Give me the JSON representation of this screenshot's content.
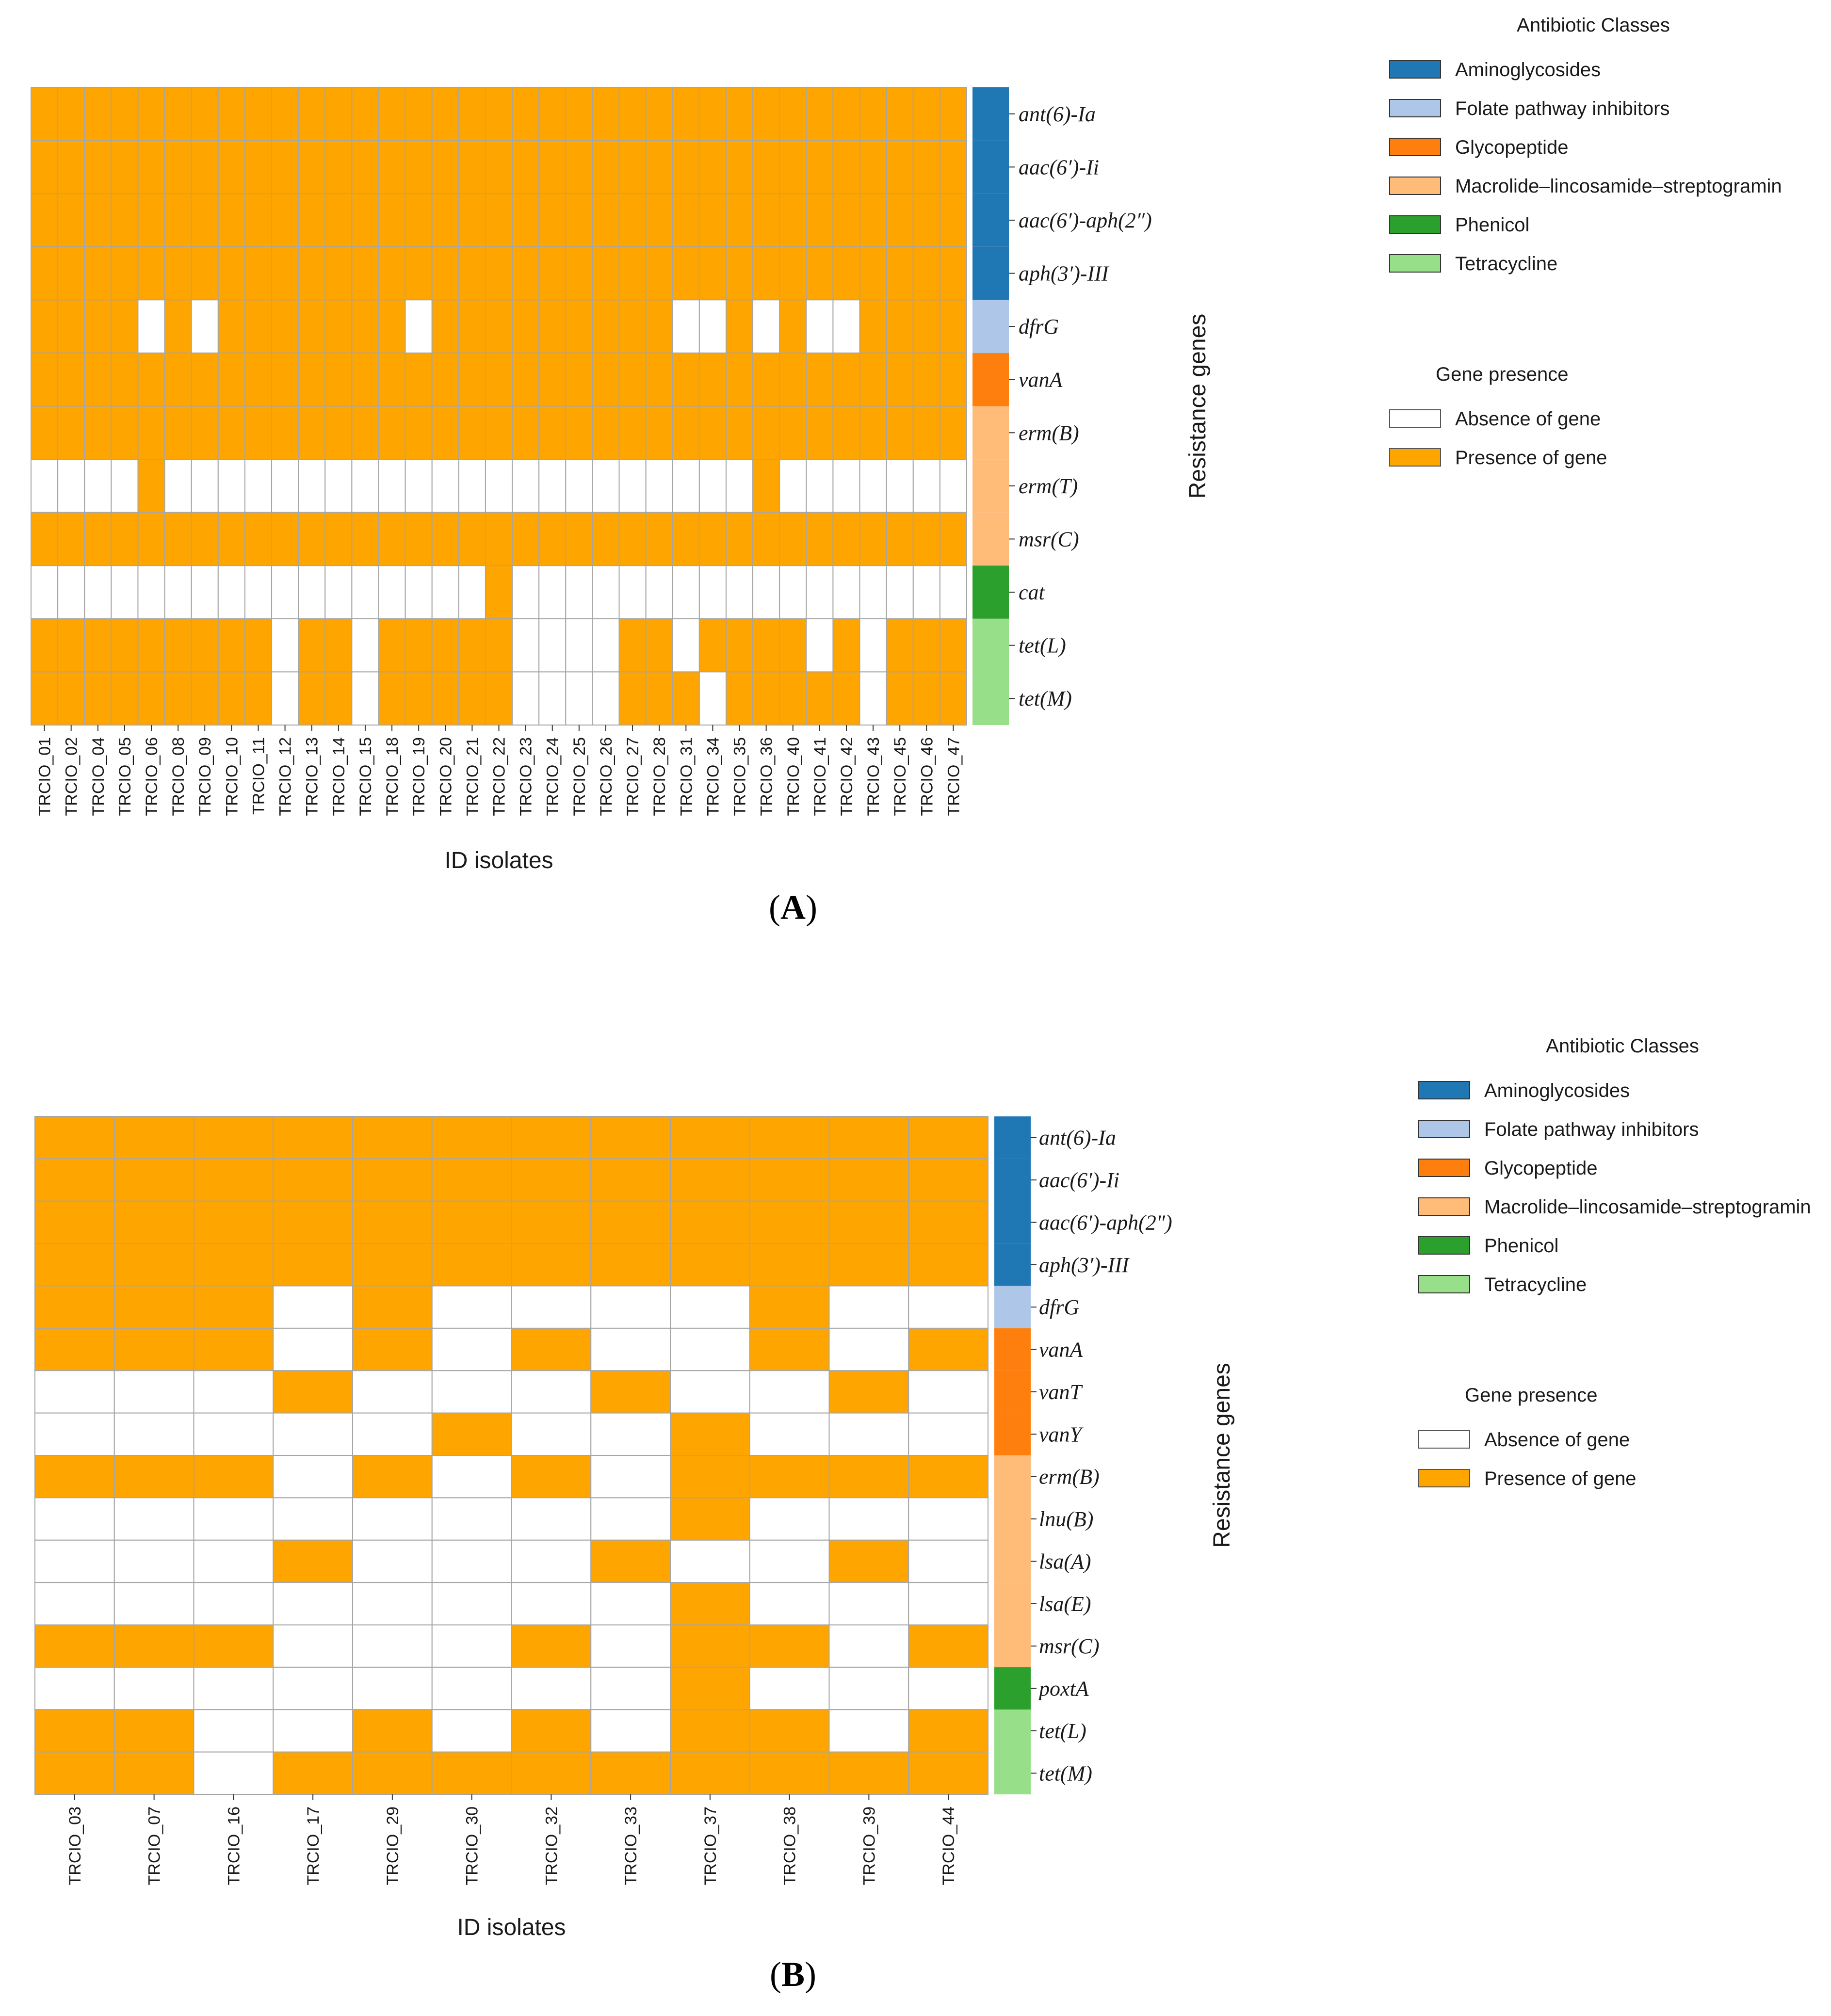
{
  "figure": {
    "colors": {
      "presence": "#ffa500",
      "absence": "#ffffff",
      "grid": "#a6a6a6",
      "Aminoglycosides": "#1f77b4",
      "Folate pathway inhibitors": "#aec7e8",
      "Glycopeptide": "#ff7f0e",
      "Macrolide–lincosamide–streptogramin": "#ffbb78",
      "Phenicol": "#2ca02c",
      "Tetracycline": "#98df8a"
    }
  },
  "chart_data": [
    {
      "panel_label": "(A)",
      "type": "heatmap",
      "xlabel": "ID isolates",
      "ylabel": "Resistance genes",
      "columns": [
        "TRCIO_01",
        "TRCIO_02",
        "TRCIO_04",
        "TRCIO_05",
        "TRCIO_06",
        "TRCIO_08",
        "TRCIO_09",
        "TRCIO_10",
        "TRCIO_11",
        "TRCIO_12",
        "TRCIO_13",
        "TRCIO_14",
        "TRCIO_15",
        "TRCIO_18",
        "TRCIO_19",
        "TRCIO_20",
        "TRCIO_21",
        "TRCIO_22",
        "TRCIO_23",
        "TRCIO_24",
        "TRCIO_25",
        "TRCIO_26",
        "TRCIO_27",
        "TRCIO_28",
        "TRCIO_31",
        "TRCIO_34",
        "TRCIO_35",
        "TRCIO_36",
        "TRCIO_40",
        "TRCIO_41",
        "TRCIO_42",
        "TRCIO_43",
        "TRCIO_45",
        "TRCIO_46",
        "TRCIO_47"
      ],
      "rows": [
        {
          "gene": "ant(6)-Ia",
          "class": "Aminoglycosides",
          "values": [
            1,
            1,
            1,
            1,
            1,
            1,
            1,
            1,
            1,
            1,
            1,
            1,
            1,
            1,
            1,
            1,
            1,
            1,
            1,
            1,
            1,
            1,
            1,
            1,
            1,
            1,
            1,
            1,
            1,
            1,
            1,
            1,
            1,
            1,
            1
          ]
        },
        {
          "gene": "aac(6')-Ii",
          "class": "Aminoglycosides",
          "values": [
            1,
            1,
            1,
            1,
            1,
            1,
            1,
            1,
            1,
            1,
            1,
            1,
            1,
            1,
            1,
            1,
            1,
            1,
            1,
            1,
            1,
            1,
            1,
            1,
            1,
            1,
            1,
            1,
            1,
            1,
            1,
            1,
            1,
            1,
            1
          ]
        },
        {
          "gene": "aac(6')-aph(2'')",
          "class": "Aminoglycosides",
          "values": [
            1,
            1,
            1,
            1,
            1,
            1,
            1,
            1,
            1,
            1,
            1,
            1,
            1,
            1,
            1,
            1,
            1,
            1,
            1,
            1,
            1,
            1,
            1,
            1,
            1,
            1,
            1,
            1,
            1,
            1,
            1,
            1,
            1,
            1,
            1
          ]
        },
        {
          "gene": "aph(3')-III",
          "class": "Aminoglycosides",
          "values": [
            1,
            1,
            1,
            1,
            1,
            1,
            1,
            1,
            1,
            1,
            1,
            1,
            1,
            1,
            1,
            1,
            1,
            1,
            1,
            1,
            1,
            1,
            1,
            1,
            1,
            1,
            1,
            1,
            1,
            1,
            1,
            1,
            1,
            1,
            1
          ]
        },
        {
          "gene": "dfrG",
          "class": "Folate pathway inhibitors",
          "values": [
            1,
            1,
            1,
            1,
            0,
            1,
            0,
            1,
            1,
            1,
            1,
            1,
            1,
            1,
            0,
            1,
            1,
            1,
            1,
            1,
            1,
            1,
            1,
            1,
            0,
            0,
            1,
            0,
            1,
            0,
            0,
            1,
            1,
            1,
            1
          ]
        },
        {
          "gene": "vanA",
          "class": "Glycopeptide",
          "values": [
            1,
            1,
            1,
            1,
            1,
            1,
            1,
            1,
            1,
            1,
            1,
            1,
            1,
            1,
            1,
            1,
            1,
            1,
            1,
            1,
            1,
            1,
            1,
            1,
            1,
            1,
            1,
            1,
            1,
            1,
            1,
            1,
            1,
            1,
            1
          ]
        },
        {
          "gene": "erm(B)",
          "class": "Macrolide–lincosamide–streptogramin",
          "values": [
            1,
            1,
            1,
            1,
            1,
            1,
            1,
            1,
            1,
            1,
            1,
            1,
            1,
            1,
            1,
            1,
            1,
            1,
            1,
            1,
            1,
            1,
            1,
            1,
            1,
            1,
            1,
            1,
            1,
            1,
            1,
            1,
            1,
            1,
            1
          ]
        },
        {
          "gene": "erm(T)",
          "class": "Macrolide–lincosamide–streptogramin",
          "values": [
            0,
            0,
            0,
            0,
            1,
            0,
            0,
            0,
            0,
            0,
            0,
            0,
            0,
            0,
            0,
            0,
            0,
            0,
            0,
            0,
            0,
            0,
            0,
            0,
            0,
            0,
            0,
            1,
            0,
            0,
            0,
            0,
            0,
            0,
            0
          ]
        },
        {
          "gene": "msr(C)",
          "class": "Macrolide–lincosamide–streptogramin",
          "values": [
            1,
            1,
            1,
            1,
            1,
            1,
            1,
            1,
            1,
            1,
            1,
            1,
            1,
            1,
            1,
            1,
            1,
            1,
            1,
            1,
            1,
            1,
            1,
            1,
            1,
            1,
            1,
            1,
            1,
            1,
            1,
            1,
            1,
            1,
            1
          ]
        },
        {
          "gene": "cat",
          "class": "Phenicol",
          "values": [
            0,
            0,
            0,
            0,
            0,
            0,
            0,
            0,
            0,
            0,
            0,
            0,
            0,
            0,
            0,
            0,
            0,
            1,
            0,
            0,
            0,
            0,
            0,
            0,
            0,
            0,
            0,
            0,
            0,
            0,
            0,
            0,
            0,
            0,
            0
          ]
        },
        {
          "gene": "tet(L)",
          "class": "Tetracycline",
          "values": [
            1,
            1,
            1,
            1,
            1,
            1,
            1,
            1,
            1,
            0,
            1,
            1,
            0,
            1,
            1,
            1,
            1,
            1,
            0,
            0,
            0,
            0,
            1,
            1,
            0,
            1,
            1,
            1,
            1,
            0,
            1,
            0,
            1,
            1,
            1
          ]
        },
        {
          "gene": "tet(M)",
          "class": "Tetracycline",
          "values": [
            1,
            1,
            1,
            1,
            1,
            1,
            1,
            1,
            1,
            0,
            1,
            1,
            0,
            1,
            1,
            1,
            1,
            1,
            0,
            0,
            0,
            0,
            1,
            1,
            1,
            0,
            1,
            1,
            1,
            1,
            1,
            0,
            1,
            1,
            1
          ]
        }
      ],
      "legend_classes_title": "Antibiotic Classes",
      "legend_classes": [
        "Aminoglycosides",
        "Folate pathway inhibitors",
        "Glycopeptide",
        "Macrolide–lincosamide–streptogramin",
        "Phenicol",
        "Tetracycline"
      ],
      "legend_presence_title": "Gene presence",
      "legend_presence": [
        "Absence of gene",
        "Presence of gene"
      ]
    },
    {
      "panel_label": "(B)",
      "type": "heatmap",
      "xlabel": "ID isolates",
      "ylabel": "Resistance genes",
      "columns": [
        "TRCIO_03",
        "TRCIO_07",
        "TRCIO_16",
        "TRCIO_17",
        "TRCIO_29",
        "TRCIO_30",
        "TRCIO_32",
        "TRCIO_33",
        "TRCIO_37",
        "TRCIO_38",
        "TRCIO_39",
        "TRCIO_44"
      ],
      "rows": [
        {
          "gene": "ant(6)-Ia",
          "class": "Aminoglycosides",
          "values": [
            1,
            1,
            1,
            1,
            1,
            1,
            1,
            1,
            1,
            1,
            1,
            1
          ]
        },
        {
          "gene": "aac(6')-Ii",
          "class": "Aminoglycosides",
          "values": [
            1,
            1,
            1,
            1,
            1,
            1,
            1,
            1,
            1,
            1,
            1,
            1
          ]
        },
        {
          "gene": "aac(6')-aph(2'')",
          "class": "Aminoglycosides",
          "values": [
            1,
            1,
            1,
            1,
            1,
            1,
            1,
            1,
            1,
            1,
            1,
            1
          ]
        },
        {
          "gene": "aph(3')-III",
          "class": "Aminoglycosides",
          "values": [
            1,
            1,
            1,
            1,
            1,
            1,
            1,
            1,
            1,
            1,
            1,
            1
          ]
        },
        {
          "gene": "dfrG",
          "class": "Folate pathway inhibitors",
          "values": [
            1,
            1,
            1,
            0,
            1,
            0,
            0,
            0,
            0,
            1,
            0,
            0
          ]
        },
        {
          "gene": "vanA",
          "class": "Glycopeptide",
          "values": [
            1,
            1,
            1,
            0,
            1,
            0,
            1,
            0,
            0,
            1,
            0,
            1
          ]
        },
        {
          "gene": "vanT",
          "class": "Glycopeptide",
          "values": [
            0,
            0,
            0,
            1,
            0,
            0,
            0,
            1,
            0,
            0,
            1,
            0
          ]
        },
        {
          "gene": "vanY",
          "class": "Glycopeptide",
          "values": [
            0,
            0,
            0,
            0,
            0,
            1,
            0,
            0,
            1,
            0,
            0,
            0
          ]
        },
        {
          "gene": "erm(B)",
          "class": "Macrolide–lincosamide–streptogramin",
          "values": [
            1,
            1,
            1,
            0,
            1,
            0,
            1,
            0,
            1,
            1,
            1,
            1
          ]
        },
        {
          "gene": "lnu(B)",
          "class": "Macrolide–lincosamide–streptogramin",
          "values": [
            0,
            0,
            0,
            0,
            0,
            0,
            0,
            0,
            1,
            0,
            0,
            0
          ]
        },
        {
          "gene": "lsa(A)",
          "class": "Macrolide–lincosamide–streptogramin",
          "values": [
            0,
            0,
            0,
            1,
            0,
            0,
            0,
            1,
            0,
            0,
            1,
            0
          ]
        },
        {
          "gene": "lsa(E)",
          "class": "Macrolide–lincosamide–streptogramin",
          "values": [
            0,
            0,
            0,
            0,
            0,
            0,
            0,
            0,
            1,
            0,
            0,
            0
          ]
        },
        {
          "gene": "msr(C)",
          "class": "Macrolide–lincosamide–streptogramin",
          "values": [
            1,
            1,
            1,
            0,
            0,
            0,
            1,
            0,
            1,
            1,
            0,
            1
          ]
        },
        {
          "gene": "poxtA",
          "class": "Phenicol",
          "values": [
            0,
            0,
            0,
            0,
            0,
            0,
            0,
            0,
            1,
            0,
            0,
            0
          ]
        },
        {
          "gene": "tet(L)",
          "class": "Tetracycline",
          "values": [
            1,
            1,
            0,
            0,
            1,
            0,
            1,
            0,
            1,
            1,
            0,
            1
          ]
        },
        {
          "gene": "tet(M)",
          "class": "Tetracycline",
          "values": [
            1,
            1,
            0,
            1,
            1,
            1,
            1,
            1,
            1,
            1,
            1,
            1
          ]
        }
      ],
      "legend_classes_title": "Antibiotic Classes",
      "legend_classes": [
        "Aminoglycosides",
        "Folate pathway inhibitors",
        "Glycopeptide",
        "Macrolide–lincosamide–streptogramin",
        "Phenicol",
        "Tetracycline"
      ],
      "legend_presence_title": "Gene presence",
      "legend_presence": [
        "Absence of gene",
        "Presence of gene"
      ]
    }
  ]
}
